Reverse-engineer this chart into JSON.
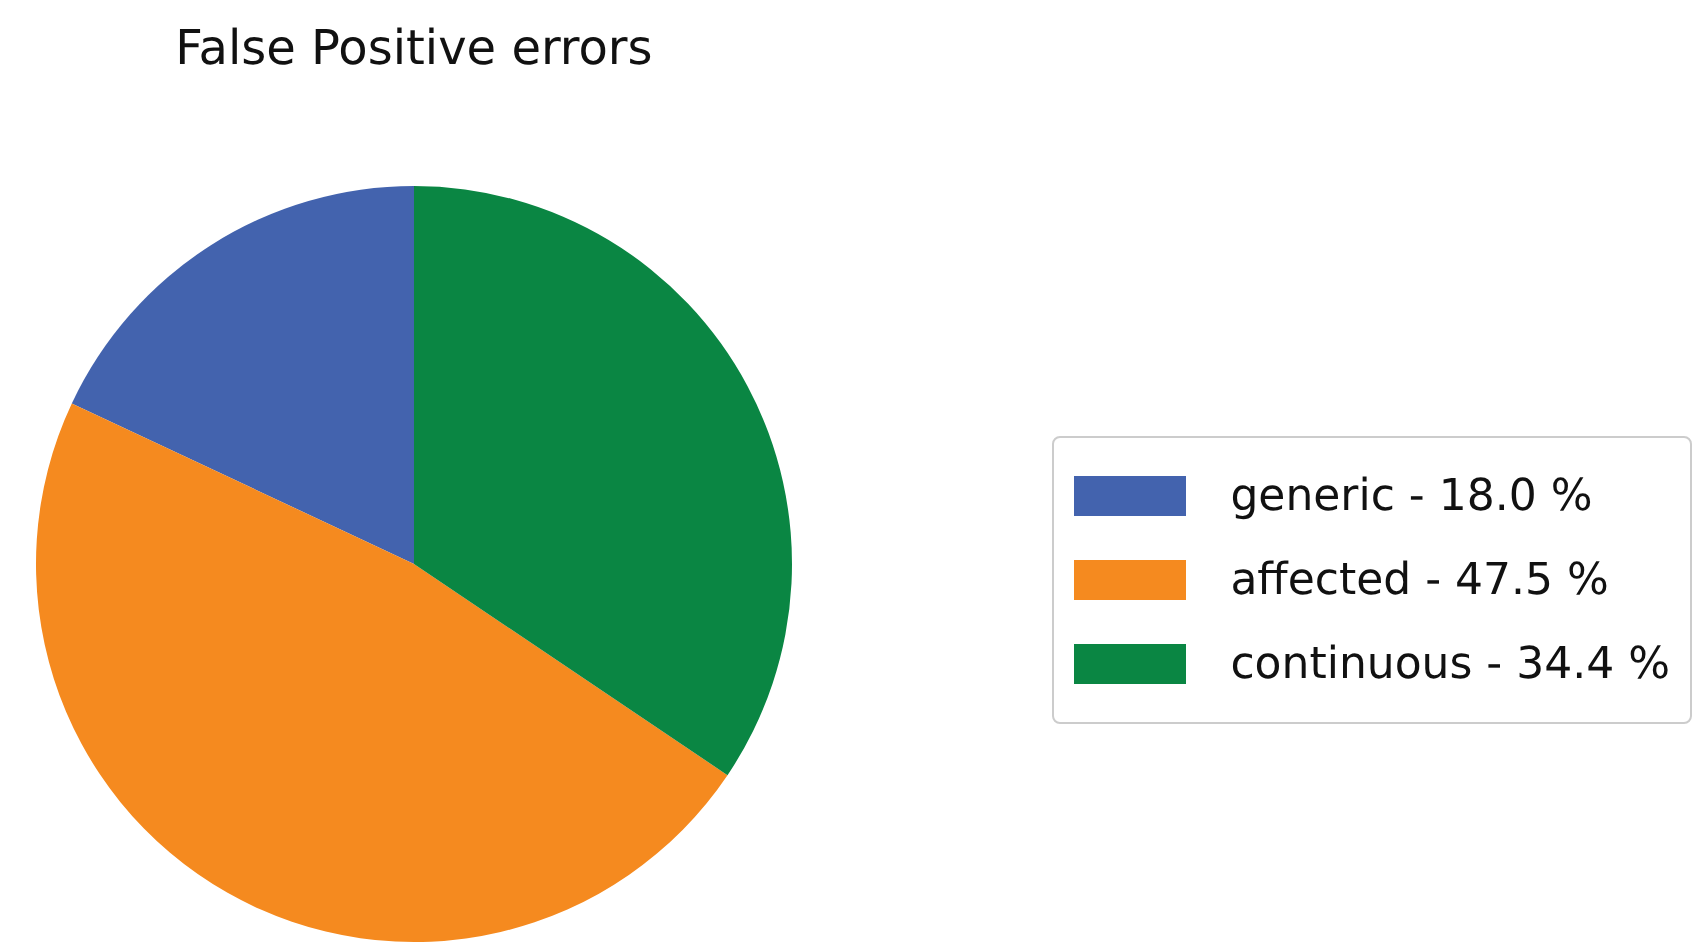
{
  "chart_data": {
    "type": "pie",
    "title": "False Positive errors",
    "categories": [
      "generic - 18.0 %",
      "affected - 47.5 %",
      "continuous - 34.4 %"
    ],
    "values": [
      18.0,
      47.5,
      34.4
    ],
    "colors": [
      "#4363ae",
      "#f58a1f",
      "#0a8643"
    ],
    "legend": "right"
  }
}
